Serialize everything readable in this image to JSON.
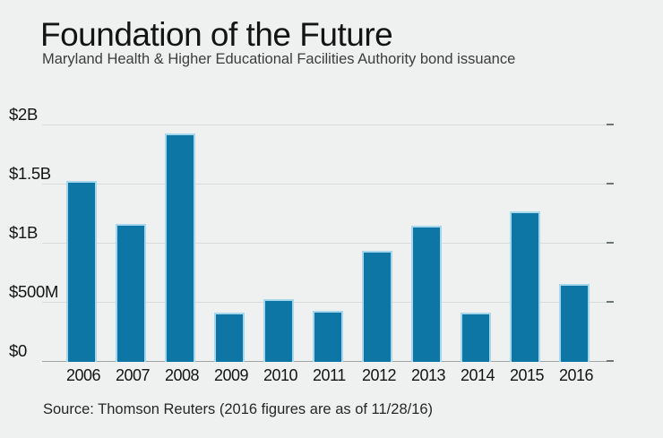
{
  "header": {
    "title": "Foundation of the Future",
    "subtitle": "Maryland Health & Higher Educational Facilities Authority bond issuance"
  },
  "source": {
    "text": "Source: Thomson Reuters (2016 figures are as of 11/28/16)"
  },
  "colors": {
    "background": "#eff1f0",
    "bar_fill": "#0e76a4",
    "bar_edge": "#a6d7ec",
    "gridline": "#d8dbda",
    "axis_baseline": "#9fa5a3",
    "tick_end": "#6e7674",
    "title_text": "#141414",
    "subtitle_text": "#3c3c3c"
  },
  "chart_data": {
    "type": "bar",
    "title": "Foundation of the Future",
    "subtitle": "Maryland Health & Higher Educational Facilities Authority bond issuance",
    "source": "Source: Thomson Reuters (2016 figures are as of 11/28/16)",
    "units": "USD billions",
    "categories": [
      "2006",
      "2007",
      "2008",
      "2009",
      "2010",
      "2011",
      "2012",
      "2013",
      "2014",
      "2015",
      "2016"
    ],
    "values": [
      1.53,
      1.17,
      1.93,
      0.42,
      0.53,
      0.43,
      0.94,
      1.15,
      0.42,
      1.27,
      0.66
    ],
    "xlabel": "",
    "ylabel": "",
    "ylim": [
      0,
      2
    ],
    "y_ticks": [
      {
        "label": "$0",
        "value": 0
      },
      {
        "label": "$500M",
        "value": 0.5
      },
      {
        "label": "$1B",
        "value": 1
      },
      {
        "label": "$1.5B",
        "value": 1.5
      },
      {
        "label": "$2B",
        "value": 2
      }
    ],
    "grid": "horizontal",
    "legend": "none"
  }
}
